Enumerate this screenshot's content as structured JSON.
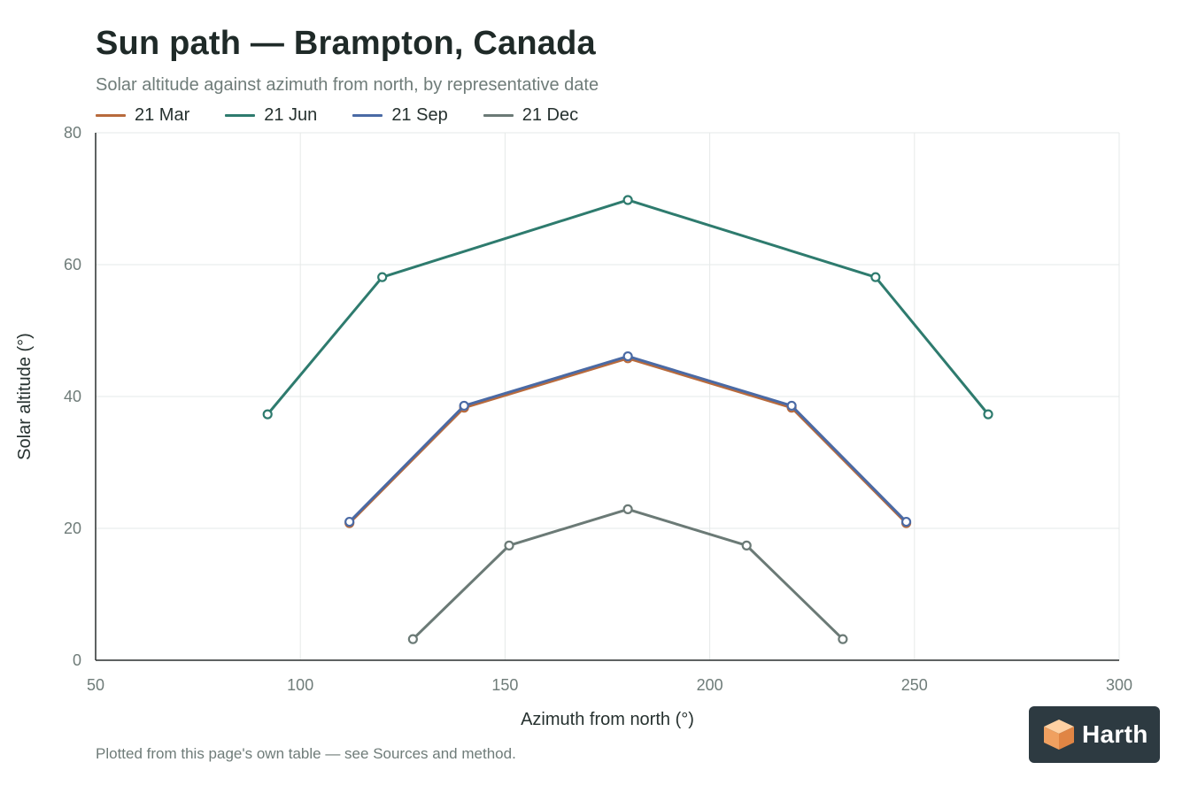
{
  "header": {
    "title": "Sun path — Brampton, Canada",
    "subtitle": "Solar altitude against azimuth from north, by representative date"
  },
  "footnote": "Plotted from this page's own table — see Sources and method.",
  "logo": {
    "text": "Harth",
    "icon": "cube-icon"
  },
  "chart_data": {
    "type": "line",
    "xlabel": "Azimuth from north (°)",
    "ylabel": "Solar altitude (°)",
    "xlim": [
      50,
      300
    ],
    "ylim": [
      0,
      80
    ],
    "xticks": [
      50,
      100,
      150,
      200,
      250,
      300
    ],
    "yticks": [
      0,
      20,
      40,
      60,
      80
    ],
    "grid": true,
    "legend_position": "top-left",
    "series": [
      {
        "name": "21 Mar",
        "color": "#b86a3c",
        "points": [
          [
            112,
            20.8
          ],
          [
            140,
            38.3
          ],
          [
            180,
            45.8
          ],
          [
            220,
            38.3
          ],
          [
            248,
            20.8
          ]
        ]
      },
      {
        "name": "21 Jun",
        "color": "#2e7b6e",
        "points": [
          [
            92,
            37.3
          ],
          [
            120,
            58.1
          ],
          [
            180,
            69.8
          ],
          [
            240.5,
            58.1
          ],
          [
            268,
            37.3
          ]
        ]
      },
      {
        "name": "21 Sep",
        "color": "#4a6aa5",
        "points": [
          [
            112,
            21.0
          ],
          [
            140,
            38.6
          ],
          [
            180,
            46.1
          ],
          [
            220,
            38.6
          ],
          [
            248,
            21.0
          ]
        ]
      },
      {
        "name": "21 Dec",
        "color": "#6b7a76",
        "points": [
          [
            127.5,
            3.2
          ],
          [
            151,
            17.4
          ],
          [
            180,
            22.9
          ],
          [
            209,
            17.4
          ],
          [
            232.5,
            3.2
          ]
        ]
      }
    ]
  }
}
